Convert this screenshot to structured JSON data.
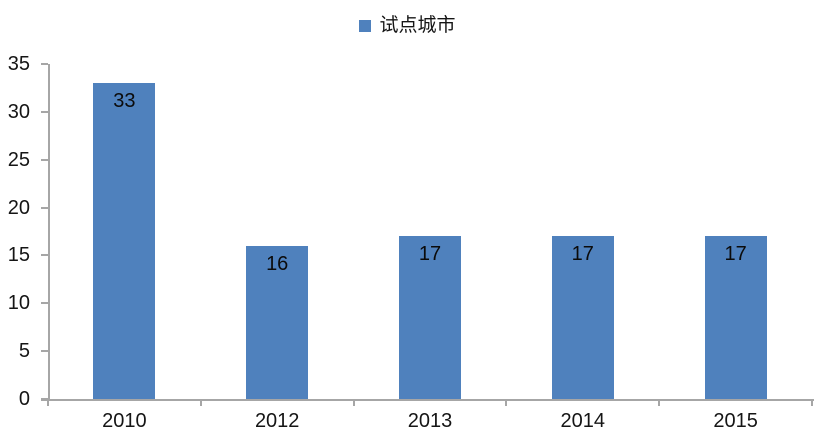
{
  "chart_data": {
    "type": "bar",
    "title": "",
    "xlabel": "",
    "ylabel": "",
    "categories": [
      "2010",
      "2012",
      "2013",
      "2014",
      "2015"
    ],
    "series": [
      {
        "name": "试点城市",
        "values": [
          33,
          16,
          17,
          17,
          17
        ]
      }
    ],
    "ylim": [
      0,
      35
    ],
    "yticks": [
      0,
      5,
      10,
      15,
      20,
      25,
      30,
      35
    ],
    "grid": false,
    "legend_position": "top-center",
    "data_label_position": "inside-top",
    "bar_color": "#4F81BD",
    "axis_color": "#A6A6A6",
    "text_color": "#151515",
    "value_label_color": "#0b0b0b"
  }
}
